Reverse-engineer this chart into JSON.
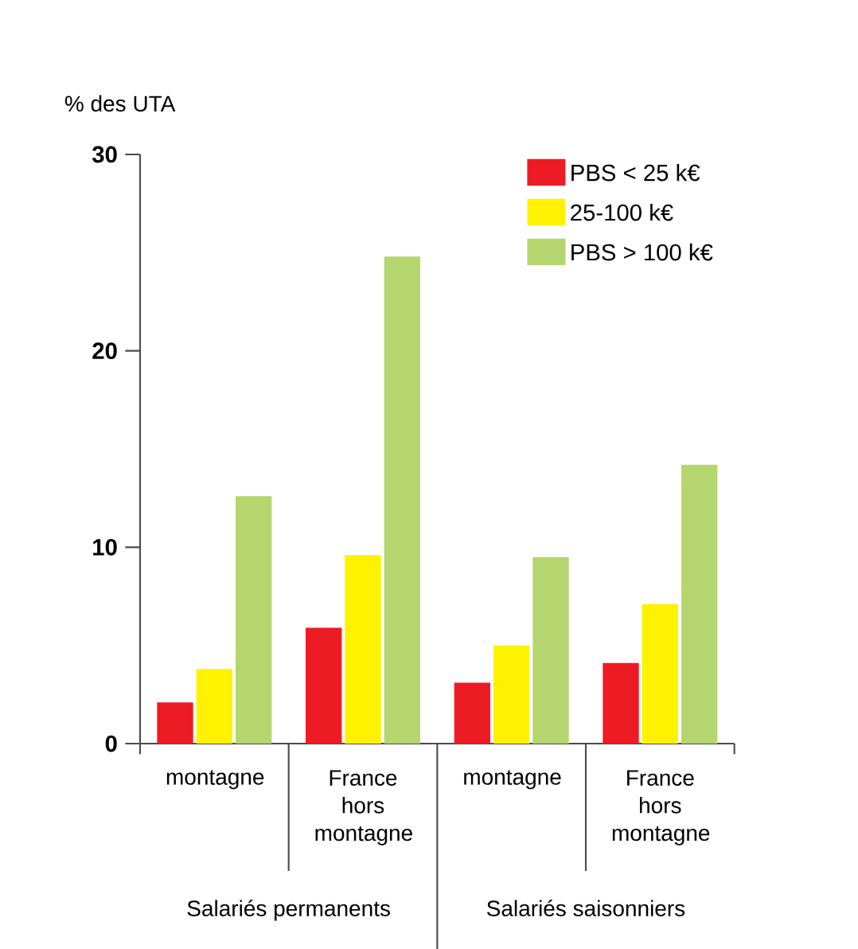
{
  "chart_data": {
    "type": "bar",
    "ylabel": "% des UTA",
    "categories": [
      "montagne",
      "France hors montagne",
      "montagne",
      "France hors montagne"
    ],
    "series": [
      {
        "name": "PBS < 25 k€",
        "color": "#ed1c24",
        "values": [
          2.1,
          5.9,
          3.1,
          4.1
        ]
      },
      {
        "name": "25-100 k€",
        "color": "#fff200",
        "values": [
          3.8,
          9.6,
          5.0,
          7.1
        ]
      },
      {
        "name": "PBS > 100 k€",
        "color": "#b5d66e",
        "values": [
          12.6,
          24.8,
          9.5,
          14.2
        ]
      }
    ],
    "ylim": [
      0,
      30
    ],
    "yticks": [
      0,
      10,
      20,
      30
    ],
    "annotations": [
      "Salariés permanents",
      "Salariés saisonniers"
    ],
    "legend": "top right"
  }
}
